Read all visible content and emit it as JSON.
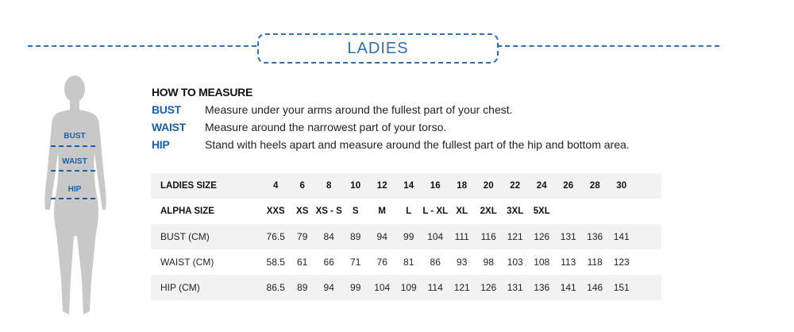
{
  "title": "LADIES",
  "how_to": {
    "heading": "HOW TO MEASURE",
    "items": [
      {
        "key": "BUST",
        "text": "Measure under your arms around the fullest part of your chest."
      },
      {
        "key": "WAIST",
        "text": "Measure around the narrowest part of your torso."
      },
      {
        "key": "HIP",
        "text": "Stand with heels apart and measure around the fullest part of the hip and bottom area."
      }
    ]
  },
  "figure_labels": [
    "BUST",
    "WAIST",
    "HIP"
  ],
  "table": {
    "rows": [
      {
        "label": "LADIES SIZE",
        "values": [
          "4",
          "6",
          "8",
          "10",
          "12",
          "14",
          "16",
          "18",
          "20",
          "22",
          "24",
          "26",
          "28",
          "30"
        ]
      },
      {
        "label": "ALPHA SIZE",
        "values": [
          "XXS",
          "XS",
          "XS - S",
          "S",
          "M",
          "L",
          "L - XL",
          "XL",
          "2XL",
          "3XL",
          "5XL",
          "",
          "",
          ""
        ]
      },
      {
        "label": "BUST (CM)",
        "values": [
          "76.5",
          "79",
          "84",
          "89",
          "94",
          "99",
          "104",
          "111",
          "116",
          "121",
          "126",
          "131",
          "136",
          "141"
        ]
      },
      {
        "label": "WAIST (CM)",
        "values": [
          "58.5",
          "61",
          "66",
          "71",
          "76",
          "81",
          "86",
          "93",
          "98",
          "103",
          "108",
          "113",
          "118",
          "123"
        ]
      },
      {
        "label": "HIP (CM)",
        "values": [
          "86.5",
          "89",
          "94",
          "99",
          "104",
          "109",
          "114",
          "121",
          "126",
          "131",
          "136",
          "141",
          "146",
          "151"
        ]
      }
    ]
  },
  "colors": {
    "accent": "#2f6fae",
    "label_blue": "#1a5fa8",
    "row_shade": "#f2f2f2",
    "silhouette": "#c8c8c8"
  }
}
